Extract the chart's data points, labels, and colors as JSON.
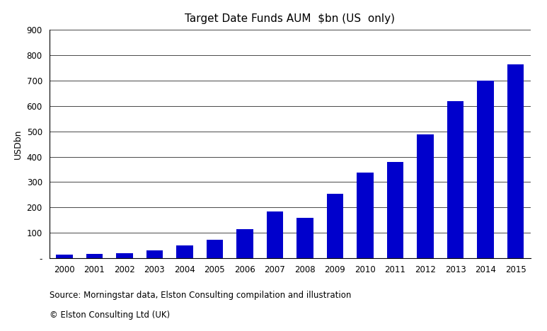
{
  "title": "Target Date Funds AUM  $bn (US  only)",
  "ylabel": "USDbn",
  "categories": [
    "2000",
    "2001",
    "2002",
    "2003",
    "2004",
    "2005",
    "2006",
    "2007",
    "2008",
    "2009",
    "2010",
    "2011",
    "2012",
    "2013",
    "2014",
    "2015"
  ],
  "values": [
    15,
    18,
    20,
    30,
    50,
    72,
    115,
    185,
    160,
    255,
    338,
    380,
    488,
    620,
    700,
    765
  ],
  "bar_color": "#0000CC",
  "ylim": [
    0,
    900
  ],
  "yticks": [
    0,
    100,
    200,
    300,
    400,
    500,
    600,
    700,
    800,
    900
  ],
  "ytick_labels": [
    "-",
    "100",
    "200",
    "300",
    "400",
    "500",
    "600",
    "700",
    "800",
    "900"
  ],
  "background_color": "#FFFFFF",
  "grid_color": "#000000",
  "source_line1": "Source: Morningstar data, Elston Consulting compilation and illustration",
  "source_line2": "© Elston Consulting Ltd (UK)",
  "title_fontsize": 11,
  "label_fontsize": 9,
  "tick_fontsize": 8.5,
  "source_fontsize": 8.5
}
